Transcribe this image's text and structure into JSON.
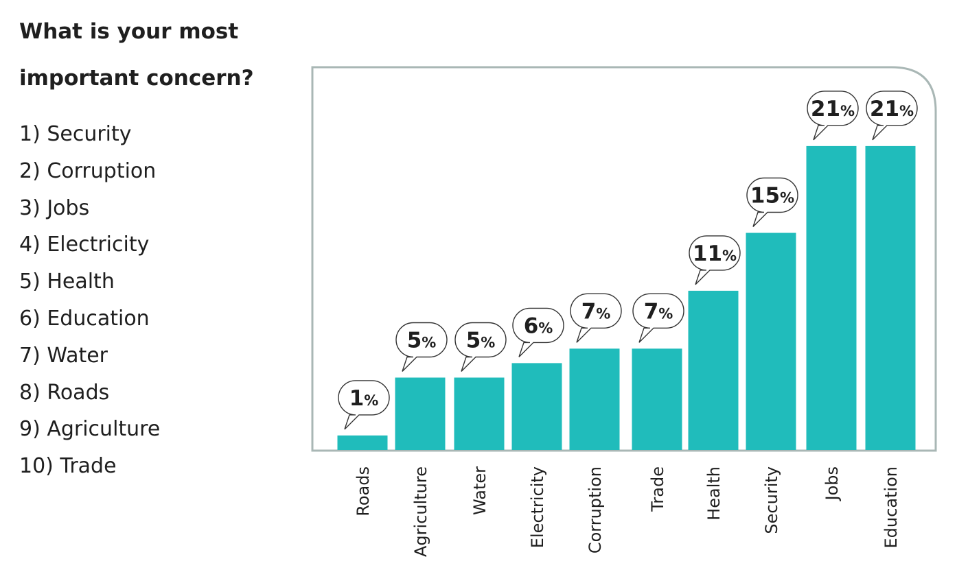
{
  "heading": {
    "line1": "What is your most",
    "line2": "important concern?"
  },
  "ranking": [
    "1) Security",
    "2) Corruption",
    "3) Jobs",
    "4) Electricity",
    "5) Health",
    "6) Education",
    "7) Water",
    "8) Roads",
    "9) Agriculture",
    "10) Trade"
  ],
  "colors": {
    "bar": "#20bcbb",
    "frame": "#a9b7b5",
    "text": "#1f1f1f"
  },
  "chart_data": {
    "type": "bar",
    "categories": [
      "Roads",
      "Agriculture",
      "Water",
      "Electricity",
      "Corruption",
      "Trade",
      "Health",
      "Security",
      "Jobs",
      "Education"
    ],
    "values": [
      1,
      5,
      5,
      6,
      7,
      7,
      11,
      15,
      21,
      21
    ],
    "value_labels": [
      "1",
      "5",
      "5",
      "6",
      "7",
      "7",
      "11",
      "15",
      "21",
      "21"
    ],
    "value_suffix": "%",
    "title": "",
    "xlabel": "",
    "ylabel": "",
    "ylim": [
      0,
      22.5
    ],
    "grid": false,
    "legend": "none",
    "category_label_orientation": "vertical"
  }
}
